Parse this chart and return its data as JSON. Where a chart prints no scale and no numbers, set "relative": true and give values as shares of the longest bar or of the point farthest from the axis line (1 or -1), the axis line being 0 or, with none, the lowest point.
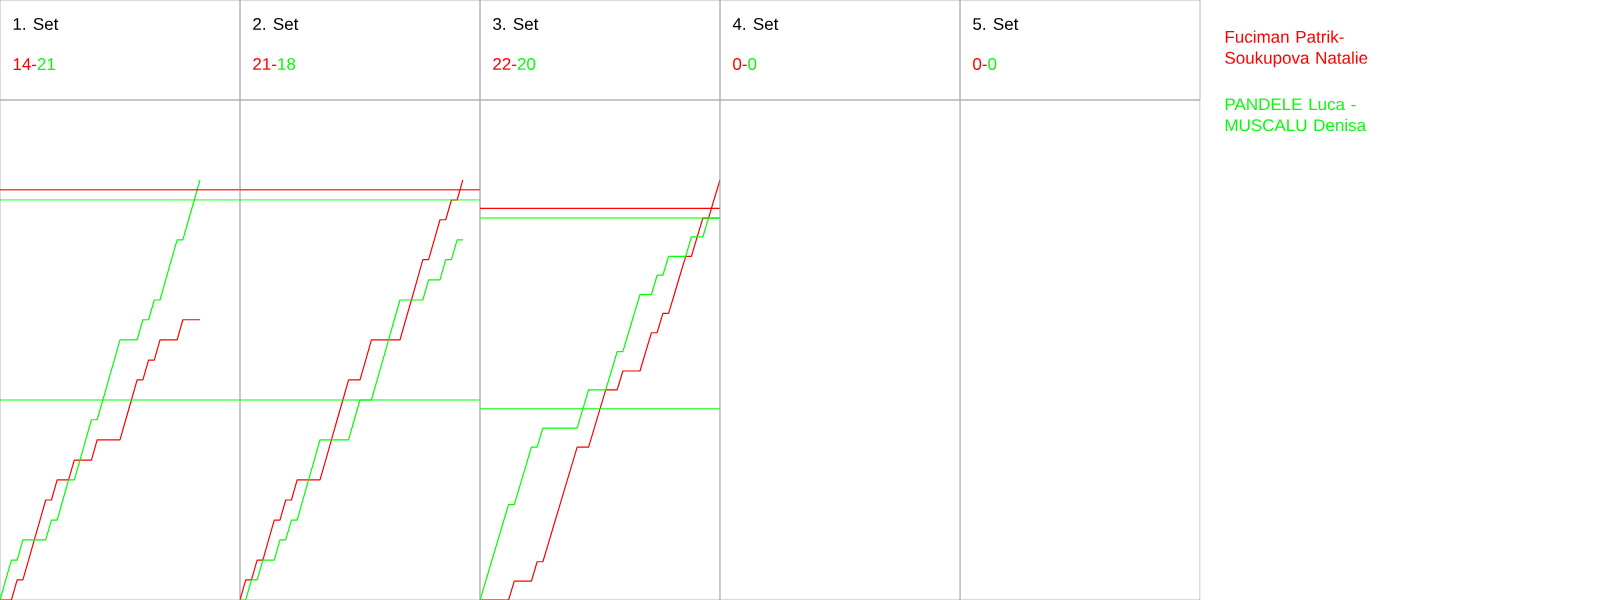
{
  "chart_data": [
    {
      "type": "line",
      "title": "1. Set",
      "annotations": [
        "14-",
        "21"
      ],
      "relative": true,
      "categories": [
        null,
        null,
        null,
        null,
        null,
        null,
        null,
        null,
        null,
        null,
        null,
        null,
        null,
        null,
        null,
        null,
        null,
        null,
        null,
        null,
        null,
        null,
        null,
        null,
        null,
        null,
        null,
        null,
        null,
        null,
        null,
        null,
        null,
        null,
        null,
        null
      ],
      "series": [
        {
          "name": "Fuciman Patrik-Soukupova Natalie",
          "color": "#ff0000",
          "values": [
            0,
            0,
            0,
            0.048,
            0.048,
            0.095,
            0.143,
            0.19,
            0.238,
            0.238,
            0.286,
            0.286,
            0.286,
            0.333,
            0.333,
            0.333,
            0.333,
            0.381,
            0.381,
            0.381,
            0.381,
            0.381,
            0.429,
            0.476,
            0.524,
            0.524,
            0.571,
            0.571,
            0.619,
            0.619,
            0.619,
            0.619,
            0.667,
            0.667,
            0.667,
            0.667
          ]
        },
        {
          "name": "PANDELE Luca - MUSCALU Denisa",
          "color": "#00ff00",
          "values": [
            0,
            0.048,
            0.095,
            0.095,
            0.143,
            0.143,
            0.143,
            0.143,
            0.143,
            0.19,
            0.19,
            0.238,
            0.286,
            0.286,
            0.333,
            0.381,
            0.429,
            0.429,
            0.476,
            0.524,
            0.571,
            0.619,
            0.619,
            0.619,
            0.619,
            0.667,
            0.667,
            0.714,
            0.714,
            0.762,
            0.81,
            0.857,
            0.857,
            0.905,
            0.952,
            1
          ]
        }
      ],
      "ref_lines": [
        {
          "axis": "y",
          "value": 0.976,
          "color": "#ff0000"
        },
        {
          "axis": "y",
          "value": 0.952,
          "color": "#00ff00"
        },
        {
          "axis": "y",
          "value": 0.476,
          "color": "#00ff00"
        }
      ]
    },
    {
      "type": "line",
      "title": "2. Set",
      "annotations": [
        "21-",
        "18"
      ],
      "relative": true,
      "categories": [
        null,
        null,
        null,
        null,
        null,
        null,
        null,
        null,
        null,
        null,
        null,
        null,
        null,
        null,
        null,
        null,
        null,
        null,
        null,
        null,
        null,
        null,
        null,
        null,
        null,
        null,
        null,
        null,
        null,
        null,
        null,
        null,
        null,
        null,
        null,
        null,
        null,
        null,
        null,
        null
      ],
      "series": [
        {
          "color": "#ff0000",
          "values": [
            0,
            0.048,
            0.048,
            0.095,
            0.095,
            0.143,
            0.19,
            0.19,
            0.238,
            0.238,
            0.286,
            0.286,
            0.286,
            0.286,
            0.286,
            0.333,
            0.381,
            0.429,
            0.476,
            0.524,
            0.524,
            0.524,
            0.571,
            0.619,
            0.619,
            0.619,
            0.619,
            0.619,
            0.619,
            0.667,
            0.714,
            0.762,
            0.81,
            0.81,
            0.857,
            0.905,
            0.905,
            0.952,
            0.952,
            1
          ]
        },
        {
          "color": "#00ff00",
          "values": [
            0,
            0,
            0.048,
            0.048,
            0.095,
            0.095,
            0.095,
            0.143,
            0.143,
            0.19,
            0.19,
            0.238,
            0.286,
            0.333,
            0.381,
            0.381,
            0.381,
            0.381,
            0.381,
            0.381,
            0.429,
            0.476,
            0.476,
            0.476,
            0.524,
            0.571,
            0.619,
            0.667,
            0.714,
            0.714,
            0.714,
            0.714,
            0.714,
            0.762,
            0.762,
            0.762,
            0.81,
            0.81,
            0.857,
            0.857
          ]
        }
      ],
      "ref_lines": [
        {
          "axis": "y",
          "value": 0.976,
          "color": "#ff0000"
        },
        {
          "axis": "y",
          "value": 0.952,
          "color": "#00ff00"
        },
        {
          "axis": "y",
          "value": 0.476,
          "color": "#00ff00"
        }
      ]
    },
    {
      "type": "line",
      "title": "3. Set",
      "annotations": [
        "22-",
        "20"
      ],
      "relative": true,
      "categories": [
        null,
        null,
        null,
        null,
        null,
        null,
        null,
        null,
        null,
        null,
        null,
        null,
        null,
        null,
        null,
        null,
        null,
        null,
        null,
        null,
        null,
        null,
        null,
        null,
        null,
        null,
        null,
        null,
        null,
        null,
        null,
        null,
        null,
        null,
        null,
        null,
        null,
        null,
        null,
        null,
        null,
        null,
        null
      ],
      "series": [
        {
          "color": "#ff0000",
          "values": [
            0,
            0,
            0,
            0,
            0,
            0,
            0.045,
            0.045,
            0.045,
            0.045,
            0.091,
            0.091,
            0.136,
            0.182,
            0.227,
            0.273,
            0.318,
            0.364,
            0.364,
            0.364,
            0.409,
            0.455,
            0.5,
            0.5,
            0.5,
            0.545,
            0.545,
            0.545,
            0.545,
            0.591,
            0.636,
            0.636,
            0.682,
            0.682,
            0.727,
            0.773,
            0.818,
            0.818,
            0.864,
            0.909,
            0.909,
            0.955,
            1
          ]
        },
        {
          "color": "#00ff00",
          "values": [
            0,
            0.045,
            0.091,
            0.136,
            0.182,
            0.227,
            0.227,
            0.273,
            0.318,
            0.364,
            0.364,
            0.409,
            0.409,
            0.409,
            0.409,
            0.409,
            0.409,
            0.409,
            0.455,
            0.5,
            0.5,
            0.5,
            0.5,
            0.545,
            0.591,
            0.591,
            0.636,
            0.682,
            0.727,
            0.727,
            0.727,
            0.773,
            0.773,
            0.818,
            0.818,
            0.818,
            0.818,
            0.864,
            0.864,
            0.864,
            0.909,
            0.909,
            0.909
          ]
        }
      ],
      "ref_lines": [
        {
          "axis": "y",
          "value": 0.932,
          "color": "#ff0000"
        },
        {
          "axis": "y",
          "value": 0.909,
          "color": "#00ff00"
        },
        {
          "axis": "y",
          "value": 0.455,
          "color": "#00ff00"
        }
      ]
    },
    {
      "type": "other",
      "title": "4. Set",
      "annotations": [
        "0-",
        "0"
      ]
    },
    {
      "type": "other",
      "title": "5. Set",
      "annotations": [
        "0-",
        "0"
      ]
    }
  ]
}
